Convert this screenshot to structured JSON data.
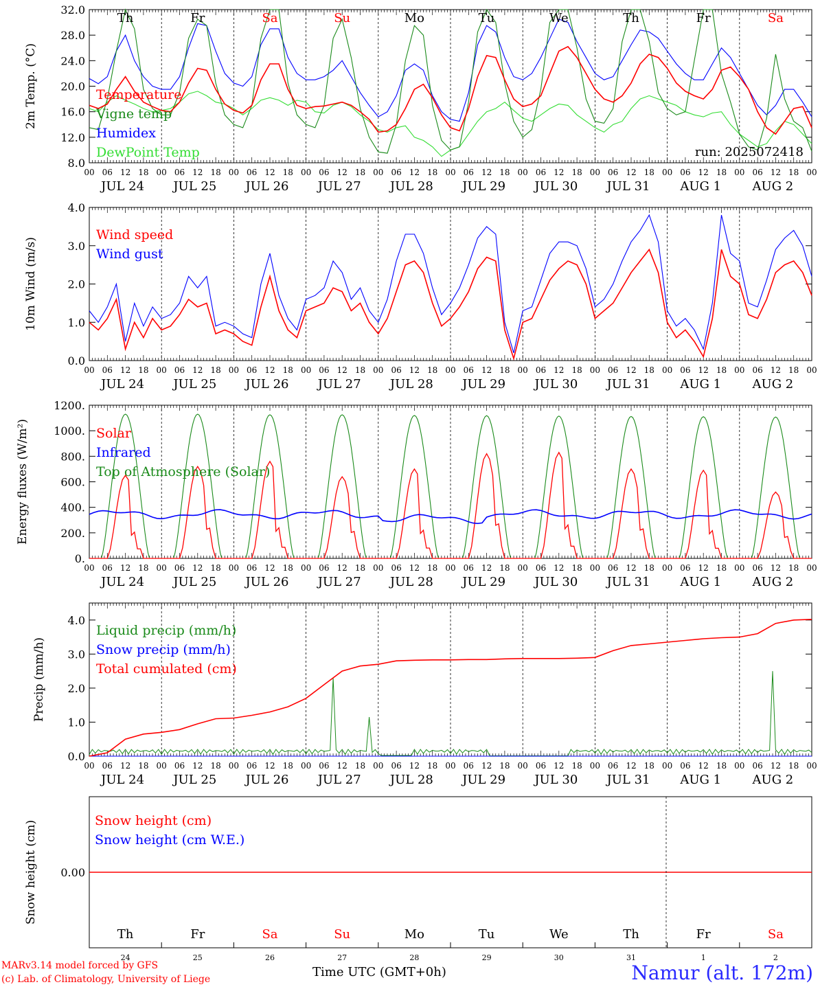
{
  "station": "Namur (alt. 172m)",
  "credit_line1": "MARv3.14 model forced by GFS",
  "credit_line2": "(c) Lab. of Climatology, University of Liege",
  "time_axis_label": "Time UTC (GMT+0h)",
  "run_label": "run: 2025072418",
  "day_names": [
    "Th",
    "Fr",
    "Sa",
    "Su",
    "Mo",
    "Tu",
    "We",
    "Th",
    "Fr",
    "Sa"
  ],
  "day_name_colors": [
    "#000000",
    "#000000",
    "#ff0000",
    "#ff0000",
    "#000000",
    "#000000",
    "#000000",
    "#000000",
    "#000000",
    "#ff0000"
  ],
  "date_labels": [
    "JUL 24",
    "JUL 25",
    "JUL 26",
    "JUL 27",
    "JUL 28",
    "JUL 29",
    "JUL 30",
    "JUL 31",
    "AUG  1",
    "AUG  2"
  ],
  "day_numbers": [
    "24",
    "25",
    "26",
    "27",
    "28",
    "29",
    "30",
    "31",
    "1",
    "2"
  ],
  "hour_ticks": [
    "00",
    "06",
    "12",
    "18"
  ],
  "final_hour_tick": "00",
  "chart_data": [
    {
      "type": "line",
      "ylabel": "2m Temp. (°C)",
      "ylim": [
        8,
        32
      ],
      "ytick_labels": [
        "8.0",
        "12.0",
        "16.0",
        "20.0",
        "24.0",
        "28.0",
        "32.0"
      ],
      "x_hours": [
        0,
        3,
        6,
        9,
        12,
        15,
        18,
        21,
        24,
        27,
        30,
        33,
        36,
        39,
        42,
        45,
        48,
        51,
        54,
        57,
        60,
        63,
        66,
        69,
        72,
        75,
        78,
        81,
        84,
        87,
        90,
        93,
        96,
        99,
        102,
        105,
        108,
        111,
        114,
        117,
        120,
        123,
        126,
        129,
        132,
        135,
        138,
        141,
        144,
        147,
        150,
        153,
        156,
        159,
        162,
        165,
        168,
        171,
        174,
        177,
        180,
        183,
        186,
        189,
        192,
        195,
        198,
        201,
        204,
        207,
        210,
        213,
        216,
        219,
        222,
        225,
        228,
        231,
        234,
        237,
        240
      ],
      "series": [
        {
          "name": "Temperature",
          "color": "#ff0000",
          "values": [
            17.0,
            16.5,
            17.2,
            19.5,
            21.5,
            19.2,
            17.5,
            16.8,
            16.2,
            16.0,
            17.5,
            20.5,
            22.8,
            22.5,
            19.5,
            17.2,
            16.2,
            15.8,
            17.0,
            21.0,
            23.5,
            23.5,
            19.5,
            17.0,
            16.5,
            16.8,
            16.9,
            17.2,
            17.5,
            17.0,
            16.0,
            14.8,
            12.8,
            13.0,
            14.0,
            16.5,
            19.5,
            20.3,
            18.2,
            15.5,
            13.5,
            13.0,
            16.5,
            21.5,
            24.8,
            24.5,
            21.0,
            18.0,
            16.8,
            17.2,
            18.5,
            22.0,
            25.5,
            26.2,
            24.5,
            22.0,
            19.5,
            18.0,
            17.5,
            18.5,
            20.5,
            23.5,
            25.0,
            24.5,
            22.8,
            20.5,
            19.2,
            18.5,
            18.0,
            19.5,
            22.5,
            23.0,
            21.5,
            19.5,
            16.0,
            13.5,
            12.5,
            14.5,
            16.5,
            16.8,
            13.5
          ]
        },
        {
          "name": "Vigne temp",
          "color": "#1a8a1a",
          "values": [
            13.5,
            13.2,
            18.0,
            25.5,
            32.0,
            29.0,
            19.5,
            16.5,
            15.5,
            15.5,
            19.0,
            27.5,
            30.5,
            29.5,
            20.5,
            15.5,
            14.0,
            13.5,
            17.0,
            27.5,
            32.0,
            32.0,
            20.5,
            15.5,
            14.0,
            13.5,
            17.0,
            27.5,
            30.5,
            24.5,
            16.5,
            12.0,
            9.7,
            9.5,
            14.0,
            24.0,
            29.5,
            28.0,
            17.0,
            11.5,
            10.0,
            10.5,
            17.5,
            28.5,
            32.0,
            30.0,
            20.5,
            14.5,
            12.0,
            13.2,
            19.5,
            30.0,
            32.0,
            32.0,
            26.0,
            18.0,
            14.5,
            14.2,
            16.5,
            27.0,
            32.0,
            32.0,
            27.0,
            19.0,
            16.5,
            15.5,
            16.0,
            24.0,
            32.0,
            32.0,
            22.0,
            17.5,
            12.5,
            10.5,
            10.0,
            15.0,
            25.0,
            18.0,
            14.5,
            13.5,
            9.8
          ]
        },
        {
          "name": "Humidex",
          "color": "#0000ff",
          "values": [
            21.2,
            20.4,
            21.5,
            25.5,
            28.0,
            24.0,
            21.5,
            20.0,
            19.5,
            19.5,
            21.5,
            26.0,
            29.8,
            29.5,
            25.5,
            22.0,
            20.5,
            20.0,
            21.5,
            26.5,
            29.0,
            29.0,
            24.5,
            22.0,
            21.0,
            21.0,
            21.5,
            22.5,
            24.0,
            21.5,
            19.0,
            17.0,
            15.2,
            16.0,
            18.5,
            22.5,
            23.5,
            22.5,
            18.5,
            16.0,
            14.8,
            14.5,
            19.0,
            26.5,
            29.5,
            28.5,
            24.5,
            21.5,
            21.0,
            22.0,
            24.5,
            27.5,
            30.5,
            30.0,
            27.0,
            24.5,
            22.0,
            21.0,
            21.5,
            24.0,
            26.5,
            28.8,
            28.5,
            27.5,
            25.5,
            23.5,
            22.0,
            21.0,
            21.0,
            23.5,
            26.0,
            24.5,
            22.0,
            19.5,
            17.0,
            15.5,
            17.0,
            19.5,
            19.5,
            17.5,
            15.2
          ]
        },
        {
          "name": "DewPoint Temp",
          "color": "#33dd33",
          "values": [
            16.5,
            16.0,
            17.5,
            18.5,
            17.8,
            17.2,
            16.5,
            16.0,
            16.2,
            16.5,
            17.5,
            18.8,
            19.2,
            18.5,
            17.5,
            17.2,
            16.5,
            15.5,
            16.5,
            17.8,
            18.2,
            17.8,
            17.0,
            17.8,
            17.5,
            16.0,
            15.8,
            17.0,
            17.5,
            16.8,
            15.5,
            14.5,
            13.2,
            12.8,
            13.5,
            13.8,
            12.0,
            11.5,
            10.5,
            9.0,
            10.0,
            10.5,
            12.5,
            14.5,
            16.0,
            16.5,
            17.5,
            16.2,
            15.0,
            14.5,
            15.5,
            16.5,
            17.2,
            17.0,
            15.5,
            14.5,
            13.5,
            12.8,
            14.0,
            14.5,
            16.5,
            18.0,
            18.5,
            18.0,
            17.5,
            17.0,
            16.0,
            15.5,
            15.2,
            15.8,
            16.0,
            14.0,
            12.5,
            11.5,
            10.5,
            11.0,
            13.0,
            14.5,
            14.0,
            12.5,
            11.0
          ]
        }
      ]
    },
    {
      "type": "line",
      "ylabel": "10m Wind (m/s)",
      "ylim": [
        0,
        4
      ],
      "ytick_labels": [
        "0.0",
        "1.0",
        "2.0",
        "3.0",
        "4.0"
      ],
      "x_hours": [
        0,
        3,
        6,
        9,
        12,
        15,
        18,
        21,
        24,
        27,
        30,
        33,
        36,
        39,
        42,
        45,
        48,
        51,
        54,
        57,
        60,
        63,
        66,
        69,
        72,
        75,
        78,
        81,
        84,
        87,
        90,
        93,
        96,
        99,
        102,
        105,
        108,
        111,
        114,
        117,
        120,
        123,
        126,
        129,
        132,
        135,
        138,
        141,
        144,
        147,
        150,
        153,
        156,
        159,
        162,
        165,
        168,
        171,
        174,
        177,
        180,
        183,
        186,
        189,
        192,
        195,
        198,
        201,
        204,
        207,
        210,
        213,
        216,
        219,
        222,
        225,
        228,
        231,
        234,
        237,
        240
      ],
      "series": [
        {
          "name": "Wind speed",
          "color": "#ff0000",
          "values": [
            1.0,
            0.8,
            1.1,
            1.6,
            0.3,
            1.0,
            0.6,
            1.1,
            0.8,
            0.9,
            1.2,
            1.6,
            1.4,
            1.5,
            0.7,
            0.8,
            0.7,
            0.5,
            0.4,
            1.4,
            2.2,
            1.3,
            0.8,
            0.6,
            1.3,
            1.4,
            1.5,
            1.9,
            1.8,
            1.3,
            1.5,
            1.0,
            0.7,
            1.1,
            1.8,
            2.5,
            2.6,
            2.3,
            1.5,
            0.9,
            1.1,
            1.4,
            1.8,
            2.4,
            2.7,
            2.6,
            0.8,
            0.05,
            1.0,
            1.1,
            1.6,
            2.1,
            2.4,
            2.6,
            2.5,
            2.0,
            1.1,
            1.3,
            1.5,
            1.9,
            2.3,
            2.6,
            2.9,
            2.3,
            1.0,
            0.6,
            0.8,
            0.5,
            0.1,
            1.1,
            2.9,
            2.2,
            2.0,
            1.2,
            1.1,
            1.6,
            2.3,
            2.5,
            2.6,
            2.3,
            1.7
          ]
        },
        {
          "name": "Wind gust",
          "color": "#0000ff",
          "values": [
            1.3,
            1.0,
            1.4,
            2.0,
            0.5,
            1.5,
            0.9,
            1.4,
            1.1,
            1.2,
            1.5,
            2.2,
            1.9,
            2.2,
            0.9,
            1.0,
            0.9,
            0.7,
            0.6,
            2.0,
            2.8,
            1.7,
            1.1,
            0.8,
            1.6,
            1.7,
            1.9,
            2.6,
            2.3,
            1.6,
            1.9,
            1.3,
            1.0,
            1.6,
            2.6,
            3.3,
            3.3,
            2.8,
            1.9,
            1.2,
            1.5,
            1.9,
            2.5,
            3.2,
            3.5,
            3.3,
            1.0,
            0.2,
            1.3,
            1.4,
            2.1,
            2.8,
            3.1,
            3.1,
            3.0,
            2.4,
            1.4,
            1.6,
            2.0,
            2.6,
            3.1,
            3.4,
            3.8,
            3.1,
            1.3,
            0.9,
            1.1,
            0.8,
            0.3,
            1.5,
            3.8,
            2.8,
            2.6,
            1.5,
            1.4,
            2.1,
            2.9,
            3.2,
            3.4,
            3.0,
            2.2
          ]
        }
      ]
    },
    {
      "type": "line",
      "ylabel": "Energy fluxes (W/m²)",
      "ylim": [
        0,
        1200
      ],
      "ytick_labels": [
        "0.",
        "200.",
        "400.",
        "600.",
        "800.",
        "1000.",
        "1200."
      ],
      "series": [
        {
          "name": "Solar",
          "color": "#ff0000",
          "daily_peak_hour": 13,
          "daily_peak_values": [
            650,
            720,
            760,
            640,
            700,
            820,
            830,
            700,
            690,
            520
          ]
        },
        {
          "name": "Infrared",
          "color": "#0000ff",
          "approx_range": [
            300,
            400
          ]
        },
        {
          "name": "Top of Atmosphere (Solar)",
          "color": "#1a8a1a",
          "daily_peak_values": [
            1130,
            1130,
            1125,
            1125,
            1120,
            1118,
            1115,
            1112,
            1110,
            1108
          ]
        }
      ]
    },
    {
      "type": "line",
      "ylabel": "Precip (mm/h)",
      "ylim": [
        0,
        4.5
      ],
      "ytick_labels": [
        "0.0",
        "1.0",
        "2.0",
        "3.0",
        "4.0"
      ],
      "series": [
        {
          "name": "Liquid precip (mm/h)",
          "color": "#1a8a1a",
          "peaks": [
            {
              "hour": 81,
              "value": 2.3
            },
            {
              "hour": 93,
              "value": 1.15
            },
            {
              "hour": 227,
              "value": 2.5
            }
          ]
        },
        {
          "name": "Snow precip (mm/h)",
          "color": "#0000ff",
          "values_constant": 0.0
        },
        {
          "name": "Total cumulated (cm)",
          "color": "#ff0000",
          "x_hours": [
            0,
            6,
            12,
            18,
            24,
            30,
            36,
            42,
            48,
            54,
            60,
            66,
            72,
            78,
            84,
            90,
            96,
            102,
            108,
            114,
            120,
            126,
            132,
            138,
            144,
            150,
            156,
            162,
            168,
            174,
            180,
            186,
            192,
            198,
            204,
            210,
            216,
            222,
            228,
            234,
            240
          ],
          "values": [
            0.0,
            0.1,
            0.5,
            0.65,
            0.7,
            0.78,
            0.95,
            1.1,
            1.12,
            1.2,
            1.3,
            1.45,
            1.7,
            2.1,
            2.5,
            2.65,
            2.7,
            2.8,
            2.82,
            2.83,
            2.83,
            2.84,
            2.84,
            2.86,
            2.87,
            2.87,
            2.87,
            2.88,
            2.9,
            3.1,
            3.25,
            3.3,
            3.35,
            3.4,
            3.45,
            3.48,
            3.5,
            3.6,
            3.9,
            4.0,
            4.02
          ]
        }
      ]
    },
    {
      "type": "line",
      "ylabel": "Snow height (cm)",
      "ytick_labels": [
        "0.00"
      ],
      "series": [
        {
          "name": "Snow height (cm)",
          "color": "#ff0000",
          "values_constant": 0.0
        },
        {
          "name": "Snow height (cm W.E.)",
          "color": "#0000ff",
          "values_constant": 0.0
        }
      ]
    }
  ]
}
